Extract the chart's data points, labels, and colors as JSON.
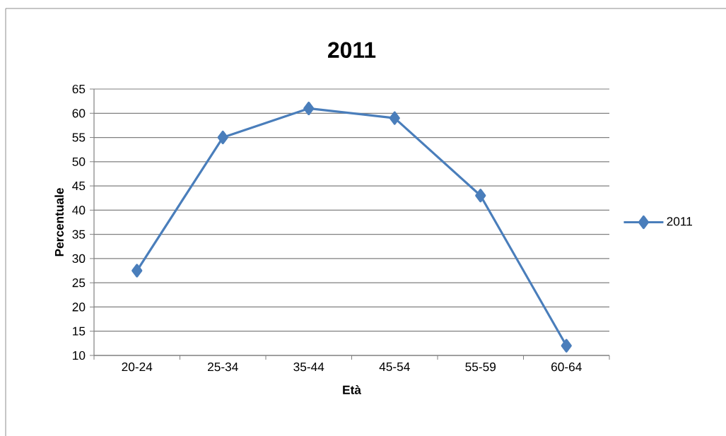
{
  "chart_data": {
    "type": "line",
    "title": "2011",
    "xlabel": "Età",
    "ylabel": "Percentuale",
    "categories": [
      "20-24",
      "25-34",
      "35-44",
      "45-54",
      "55-59",
      "60-64"
    ],
    "series": [
      {
        "name": "2011",
        "color": "#4a7ebb",
        "values": [
          27.5,
          55,
          61,
          59,
          43,
          12
        ]
      }
    ],
    "ylim": [
      10,
      65
    ],
    "yticks": [
      10,
      15,
      20,
      25,
      30,
      35,
      40,
      45,
      50,
      55,
      60,
      65
    ],
    "grid": "y",
    "legend": "right",
    "marker": "diamond",
    "line_style": "solid"
  }
}
